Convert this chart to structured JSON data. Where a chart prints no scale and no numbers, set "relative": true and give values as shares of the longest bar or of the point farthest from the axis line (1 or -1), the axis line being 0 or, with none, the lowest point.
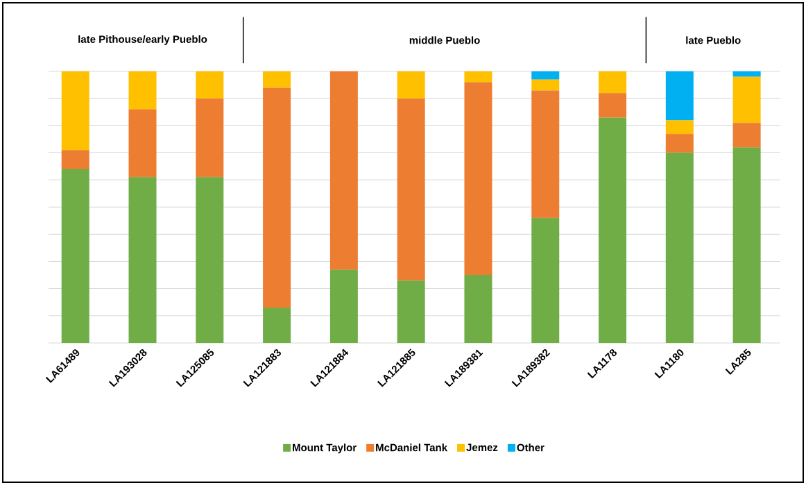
{
  "chart_data": {
    "type": "bar",
    "stacked": true,
    "relative": true,
    "grid": "y",
    "legend": "bottom",
    "annotations": [
      "late Pithouse/early Pueblo",
      "middle Pueblo",
      "late Pueblo"
    ],
    "categories": [
      "LA61489",
      "LA193028",
      "LA125085",
      "LA121883",
      "LA121884",
      "LA121885",
      "LA189381",
      "LA189382",
      "LA1178",
      "LA1180",
      "LA285"
    ],
    "series": [
      {
        "name": "Mount Taylor",
        "color": "#70ad47",
        "values": [
          0.64,
          0.61,
          0.61,
          0.13,
          0.27,
          0.23,
          0.25,
          0.46,
          0.83,
          0.7,
          0.72
        ]
      },
      {
        "name": "McDaniel Tank",
        "color": "#ed7d31",
        "values": [
          0.07,
          0.25,
          0.29,
          0.81,
          0.73,
          0.67,
          0.71,
          0.47,
          0.09,
          0.07,
          0.09
        ]
      },
      {
        "name": "Jemez",
        "color": "#ffc000",
        "values": [
          0.29,
          0.14,
          0.1,
          0.06,
          0.0,
          0.1,
          0.04,
          0.04,
          0.08,
          0.05,
          0.17
        ]
      },
      {
        "name": "Other",
        "color": "#00b0f0",
        "values": [
          0.0,
          0.0,
          0.0,
          0.0,
          0.0,
          0.0,
          0.0,
          0.03,
          0.0,
          0.18,
          0.02
        ]
      }
    ]
  }
}
